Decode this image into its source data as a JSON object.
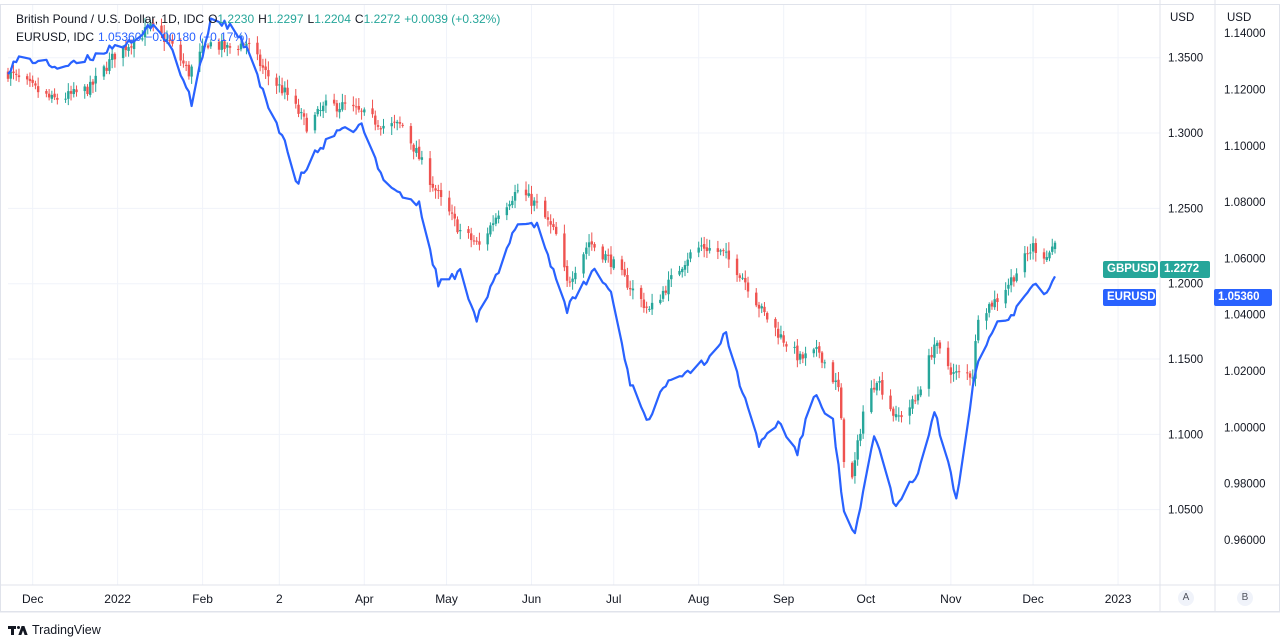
{
  "legend": {
    "primary": {
      "title": "British Pound / U.S. Dollar, 1D, IDC",
      "open_label": "O",
      "open": "1.2230",
      "high_label": "H",
      "high": "1.2297",
      "low_label": "L",
      "low": "1.2204",
      "close_label": "C",
      "close": "1.2272",
      "change": "+0.0039 (+0.32%)"
    },
    "secondary": {
      "title": "EURUSD, IDC",
      "value": "1.05360",
      "change": "−0.00180 (−0.17%)"
    }
  },
  "axes": {
    "left_unit": "USD",
    "right_unit": "USD",
    "left_scale_button": "A",
    "right_scale_button": "B"
  },
  "tags": {
    "gbp": {
      "label": "GBPUSD",
      "value": "1.2272"
    },
    "eur": {
      "label": "EURUSD",
      "value": "1.05360"
    }
  },
  "brand": {
    "name": "TradingView"
  },
  "colors": {
    "up": "#26a69a",
    "down": "#ef5350",
    "eur_line": "#2962ff",
    "grid": "#f0f3fa",
    "axis_text": "#131722"
  },
  "chart_data": {
    "type": "candlestick+line",
    "x_axis_labels": [
      "Dec",
      "2022",
      "Feb",
      "2",
      "Apr",
      "May",
      "Jun",
      "Jul",
      "Aug",
      "Sep",
      "Oct",
      "Nov",
      "Dec",
      "2023"
    ],
    "gbp_axis": {
      "ticks": [
        "1.0500",
        "1.1000",
        "1.1500",
        "1.2000",
        "1.2500",
        "1.3000",
        "1.3500"
      ],
      "range": [
        1.0,
        1.385
      ]
    },
    "eur_axis": {
      "ticks": [
        "0.96000",
        "0.98000",
        "1.00000",
        "1.02000",
        "1.04000",
        "1.06000",
        "1.08000",
        "1.10000",
        "1.12000",
        "1.14000"
      ],
      "range": [
        0.944,
        1.15
      ]
    },
    "gbpusd_close_anchors": [
      [
        "2021-11-22",
        1.34
      ],
      [
        "2021-12-01",
        1.33
      ],
      [
        "2021-12-08",
        1.322
      ],
      [
        "2021-12-15",
        1.325
      ],
      [
        "2021-12-22",
        1.33
      ],
      [
        "2021-12-31",
        1.352
      ],
      [
        "2022-01-13",
        1.37
      ],
      [
        "2022-01-20",
        1.36
      ],
      [
        "2022-01-27",
        1.34
      ],
      [
        "2022-02-03",
        1.36
      ],
      [
        "2022-02-10",
        1.356
      ],
      [
        "2022-02-17",
        1.36
      ],
      [
        "2022-02-24",
        1.34
      ],
      [
        "2022-03-04",
        1.325
      ],
      [
        "2022-03-11",
        1.305
      ],
      [
        "2022-03-18",
        1.318
      ],
      [
        "2022-03-25",
        1.318
      ],
      [
        "2022-04-01",
        1.312
      ],
      [
        "2022-04-08",
        1.305
      ],
      [
        "2022-04-15",
        1.305
      ],
      [
        "2022-04-22",
        1.28
      ],
      [
        "2022-04-29",
        1.255
      ],
      [
        "2022-05-06",
        1.235
      ],
      [
        "2022-05-13",
        1.225
      ],
      [
        "2022-05-20",
        1.248
      ],
      [
        "2022-05-27",
        1.262
      ],
      [
        "2022-06-03",
        1.252
      ],
      [
        "2022-06-10",
        1.232
      ],
      [
        "2022-06-14",
        1.2
      ],
      [
        "2022-06-22",
        1.228
      ],
      [
        "2022-06-30",
        1.215
      ],
      [
        "2022-07-07",
        1.198
      ],
      [
        "2022-07-14",
        1.182
      ],
      [
        "2022-07-21",
        1.2
      ],
      [
        "2022-07-28",
        1.218
      ],
      [
        "2022-08-02",
        1.225
      ],
      [
        "2022-08-10",
        1.22
      ],
      [
        "2022-08-17",
        1.205
      ],
      [
        "2022-08-24",
        1.182
      ],
      [
        "2022-08-31",
        1.165
      ],
      [
        "2022-09-07",
        1.15
      ],
      [
        "2022-09-14",
        1.155
      ],
      [
        "2022-09-21",
        1.13
      ],
      [
        "2022-09-23",
        1.085
      ],
      [
        "2022-09-26",
        1.07
      ],
      [
        "2022-09-30",
        1.115
      ],
      [
        "2022-10-05",
        1.138
      ],
      [
        "2022-10-12",
        1.11
      ],
      [
        "2022-10-19",
        1.122
      ],
      [
        "2022-10-26",
        1.16
      ],
      [
        "2022-11-02",
        1.14
      ],
      [
        "2022-11-09",
        1.14
      ],
      [
        "2022-11-11",
        1.18
      ],
      [
        "2022-11-18",
        1.19
      ],
      [
        "2022-11-25",
        1.208
      ],
      [
        "2022-12-01",
        1.225
      ],
      [
        "2022-12-06",
        1.218
      ],
      [
        "2022-12-09",
        1.2272
      ]
    ],
    "eurusd_close_anchors": [
      [
        "2021-11-22",
        1.127
      ],
      [
        "2021-11-26",
        1.131
      ],
      [
        "2021-12-03",
        1.13
      ],
      [
        "2021-12-10",
        1.128
      ],
      [
        "2021-12-17",
        1.129
      ],
      [
        "2021-12-24",
        1.132
      ],
      [
        "2021-12-31",
        1.136
      ],
      [
        "2022-01-07",
        1.136
      ],
      [
        "2022-01-14",
        1.144
      ],
      [
        "2022-01-21",
        1.134
      ],
      [
        "2022-01-28",
        1.115
      ],
      [
        "2022-02-04",
        1.145
      ],
      [
        "2022-02-10",
        1.143
      ],
      [
        "2022-02-17",
        1.135
      ],
      [
        "2022-02-24",
        1.116
      ],
      [
        "2022-03-03",
        1.102
      ],
      [
        "2022-03-07",
        1.086
      ],
      [
        "2022-03-14",
        1.097
      ],
      [
        "2022-03-21",
        1.104
      ],
      [
        "2022-03-31",
        1.107
      ],
      [
        "2022-04-07",
        1.09
      ],
      [
        "2022-04-14",
        1.083
      ],
      [
        "2022-04-21",
        1.079
      ],
      [
        "2022-04-28",
        1.051
      ],
      [
        "2022-05-06",
        1.055
      ],
      [
        "2022-05-12",
        1.039
      ],
      [
        "2022-05-20",
        1.055
      ],
      [
        "2022-05-27",
        1.073
      ],
      [
        "2022-06-03",
        1.072
      ],
      [
        "2022-06-10",
        1.053
      ],
      [
        "2022-06-14",
        1.042
      ],
      [
        "2022-06-24",
        1.056
      ],
      [
        "2022-06-30",
        1.048
      ],
      [
        "2022-07-07",
        1.016
      ],
      [
        "2022-07-14",
        1.002
      ],
      [
        "2022-07-21",
        1.018
      ],
      [
        "2022-07-28",
        1.02
      ],
      [
        "2022-08-04",
        1.024
      ],
      [
        "2022-08-11",
        1.033
      ],
      [
        "2022-08-18",
        1.009
      ],
      [
        "2022-08-23",
        0.994
      ],
      [
        "2022-08-30",
        1.002
      ],
      [
        "2022-09-06",
        0.991
      ],
      [
        "2022-09-12",
        1.012
      ],
      [
        "2022-09-19",
        1.002
      ],
      [
        "2022-09-23",
        0.969
      ],
      [
        "2022-09-27",
        0.961
      ],
      [
        "2022-10-04",
        0.998
      ],
      [
        "2022-10-12",
        0.971
      ],
      [
        "2022-10-21",
        0.986
      ],
      [
        "2022-10-26",
        1.006
      ],
      [
        "2022-11-03",
        0.975
      ],
      [
        "2022-11-10",
        1.021
      ],
      [
        "2022-11-17",
        1.036
      ],
      [
        "2022-11-24",
        1.041
      ],
      [
        "2022-12-01",
        1.052
      ],
      [
        "2022-12-06",
        1.047
      ],
      [
        "2022-12-09",
        1.0536
      ]
    ]
  }
}
